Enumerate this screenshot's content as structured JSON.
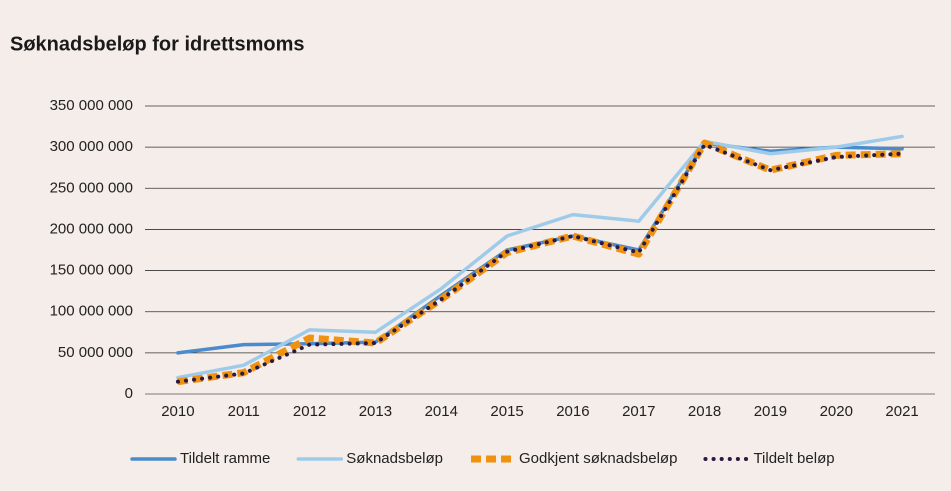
{
  "chart_data": {
    "type": "line",
    "title": "Søknadsbeløp for idrettsmoms",
    "categories": [
      "2010",
      "2011",
      "2012",
      "2013",
      "2014",
      "2015",
      "2016",
      "2017",
      "2018",
      "2019",
      "2020",
      "2021"
    ],
    "series": [
      {
        "name": "Tildelt ramme",
        "color": "#4a8bcb",
        "style": "solid",
        "values": [
          50000000,
          60000000,
          61000000,
          63000000,
          120000000,
          175000000,
          192000000,
          175000000,
          305000000,
          295000000,
          300000000,
          298000000
        ]
      },
      {
        "name": "Søknadsbeløp",
        "color": "#9fcbea",
        "style": "solid",
        "values": [
          20000000,
          35000000,
          78000000,
          75000000,
          128000000,
          192000000,
          218000000,
          210000000,
          307000000,
          292000000,
          300000000,
          313000000
        ]
      },
      {
        "name": "Godkjent søknadsbeløp",
        "color": "#f0920f",
        "style": "dashed",
        "values": [
          15000000,
          26000000,
          68000000,
          62000000,
          115000000,
          172000000,
          192000000,
          170000000,
          305000000,
          272000000,
          290000000,
          292000000
        ]
      },
      {
        "name": "Tildelt beløp",
        "color": "#2b1a44",
        "style": "dotted",
        "values": [
          15000000,
          25000000,
          60000000,
          62000000,
          115000000,
          173000000,
          192000000,
          172000000,
          303000000,
          272000000,
          288000000,
          292000000
        ]
      }
    ],
    "ylim": [
      0,
      350000000
    ],
    "yticks": [
      0,
      {
        "value": 50000000,
        "label": "50 000 000"
      },
      {
        "value": 100000000,
        "label": "100 000 000"
      },
      {
        "value": 150000000,
        "label": "150 000 000"
      },
      {
        "value": 200000000,
        "label": "200 000 000"
      },
      {
        "value": 250000000,
        "label": "250 000 000"
      },
      {
        "value": 300000000,
        "label": "300 000 000"
      },
      {
        "value": 350000000,
        "label": "350 000 000"
      }
    ],
    "grid": true,
    "legend": "bottom"
  }
}
